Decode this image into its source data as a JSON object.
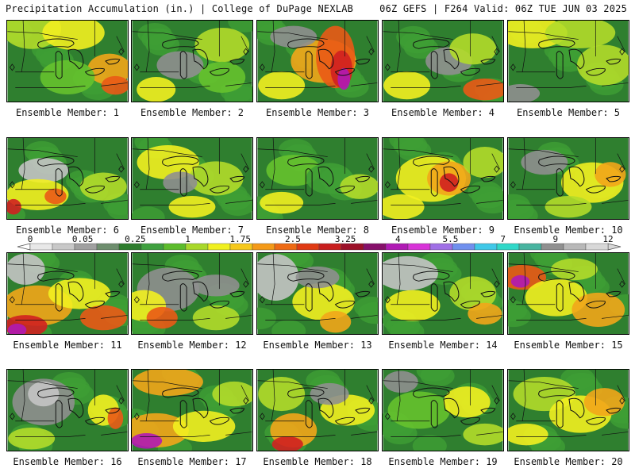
{
  "header": {
    "left": "Precipitation Accumulation (in.) | College of DuPage NEXLAB",
    "right": "06Z GEFS | F264 Valid: 06Z TUE JUN 03 2025"
  },
  "caption_prefix": "Ensemble Member: ",
  "members": [
    "1",
    "2",
    "3",
    "4",
    "5",
    "6",
    "7",
    "8",
    "9",
    "10",
    "11",
    "12",
    "13",
    "14",
    "15",
    "16",
    "17",
    "18",
    "19",
    "20"
  ],
  "scale": {
    "labels": [
      "0",
      "0.05",
      "0.25",
      "1",
      "1.75",
      "2.5",
      "3.25",
      "4",
      "5.5",
      "7",
      "9",
      "12"
    ],
    "colors": [
      "#e8e8e8",
      "#c8c8c8",
      "#a0a0a0",
      "#6e8e6e",
      "#2e7d2e",
      "#3fa03f",
      "#5cbc2c",
      "#a8d82a",
      "#f0f020",
      "#f6c81c",
      "#f49a18",
      "#ee6a14",
      "#e03a14",
      "#c81e1e",
      "#9c1028",
      "#86106a",
      "#b01ab4",
      "#d834d8",
      "#a070e6",
      "#7090ee",
      "#40c8e8",
      "#30d8c8",
      "#48b4a0",
      "#909090",
      "#b8b8b8",
      "#d8d8d8"
    ]
  },
  "palette": {
    "green_dark": "#2f7f2f",
    "green": "#3f9f35",
    "green_light": "#66c22e",
    "yellow_green": "#b2dc2a",
    "yellow": "#f2f020",
    "orange": "#f2a61a",
    "red_orange": "#ea5a16",
    "red": "#d02020",
    "magenta": "#b01ab4",
    "gray": "#8f8f8f",
    "light_gray": "#c4c4c4"
  }
}
